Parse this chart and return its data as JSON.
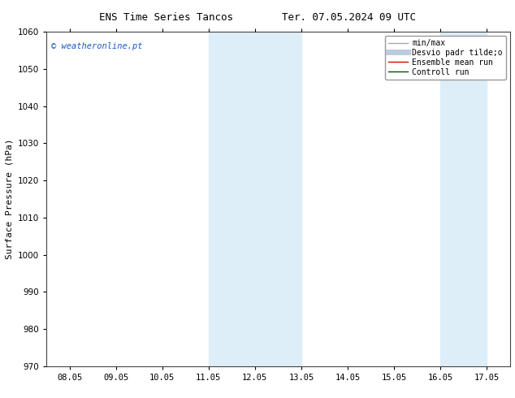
{
  "title_left": "ENS Time Series Tancos",
  "title_right": "Ter. 07.05.2024 09 UTC",
  "ylabel": "Surface Pressure (hPa)",
  "ylim": [
    970,
    1060
  ],
  "yticks": [
    970,
    980,
    990,
    1000,
    1010,
    1020,
    1030,
    1040,
    1050,
    1060
  ],
  "xtick_labels": [
    "08.05",
    "09.05",
    "10.05",
    "11.05",
    "12.05",
    "13.05",
    "14.05",
    "15.05",
    "16.05",
    "17.05"
  ],
  "num_xticks": 10,
  "shaded_regions": [
    {
      "xmin": 3.0,
      "xmax": 4.0
    },
    {
      "xmin": 4.0,
      "xmax": 5.0
    },
    {
      "xmin": 8.0,
      "xmax": 9.0
    }
  ],
  "shaded_color": "#ddeef8",
  "watermark_text": "© weatheronline.pt",
  "watermark_color": "#1a56c4",
  "background_color": "#ffffff",
  "legend_entries": [
    {
      "label": "min/max",
      "color": "#aaaaaa",
      "lw": 1.0,
      "style": "solid"
    },
    {
      "label": "Desvio padr tilde;o",
      "color": "#bbccdd",
      "lw": 5,
      "style": "solid"
    },
    {
      "label": "Ensemble mean run",
      "color": "#cc1100",
      "lw": 1.0,
      "style": "solid"
    },
    {
      "label": "Controll run",
      "color": "#005500",
      "lw": 1.0,
      "style": "solid"
    }
  ],
  "tick_font_size": 7.5,
  "title_font_size": 9,
  "ylabel_font_size": 8,
  "legend_font_size": 7
}
